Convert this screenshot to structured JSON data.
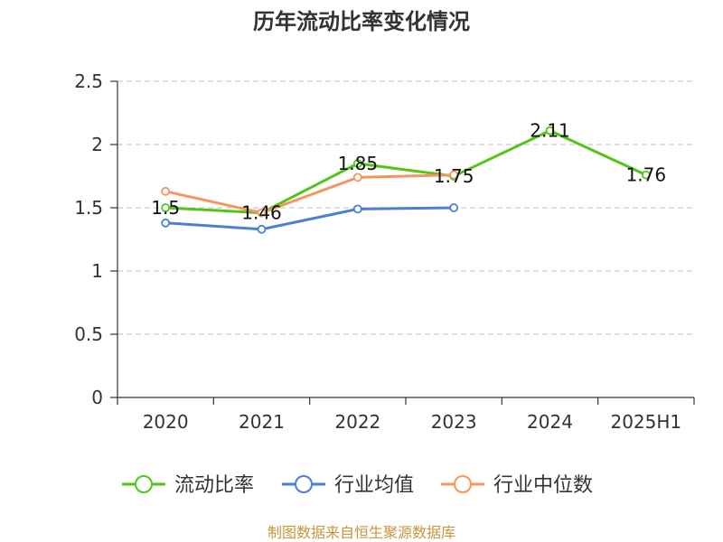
{
  "chart_data": {
    "type": "line",
    "title": "历年流动比率变化情况",
    "categories": [
      "2020",
      "2021",
      "2022",
      "2023",
      "2024",
      "2025H1"
    ],
    "y_ticks": [
      "0",
      "0.5",
      "1",
      "1.5",
      "2",
      "2.5"
    ],
    "ylim": [
      0,
      2.5
    ],
    "grid": true,
    "legend_position": "bottom",
    "series": [
      {
        "name": "流动比率",
        "color": "#52c41a",
        "values": [
          1.5,
          1.46,
          1.85,
          1.75,
          2.11,
          1.76
        ],
        "labels_shown": true
      },
      {
        "name": "行业均值",
        "color": "#4a7fd6",
        "values": [
          1.38,
          1.33,
          1.49,
          1.5,
          null,
          null
        ],
        "labels_shown": false
      },
      {
        "name": "行业中位数",
        "color": "#f39660",
        "values": [
          1.63,
          1.46,
          1.74,
          1.76,
          null,
          null
        ],
        "labels_shown": false
      }
    ],
    "data_labels": [
      "1.5",
      "1.46",
      "1.85",
      "1.75",
      "2.11",
      "1.76"
    ]
  },
  "source": "制图数据来自恒生聚源数据库"
}
